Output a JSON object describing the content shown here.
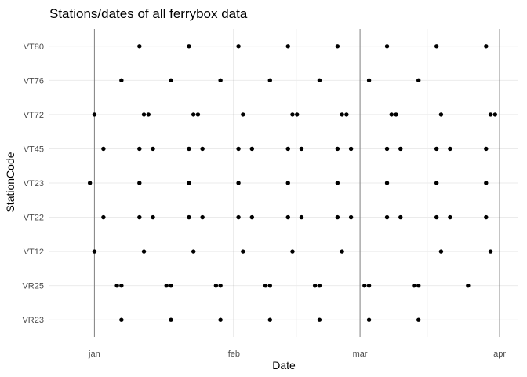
{
  "chart_data": {
    "type": "scatter",
    "title": "Stations/dates of all ferrybox data",
    "xlabel": "Date",
    "ylabel": "StationCode",
    "x_ticks": [
      {
        "date": "2017-01-01",
        "label": "jan"
      },
      {
        "date": "2017-02-01",
        "label": "feb"
      },
      {
        "date": "2017-03-01",
        "label": "mar"
      },
      {
        "date": "2017-04-01",
        "label": "apr"
      }
    ],
    "x_minor_grid": [
      "2017-01-16",
      "2017-02-15",
      "2017-03-16"
    ],
    "xlim": [
      "2016-12-22",
      "2017-04-05"
    ],
    "vertical_lines": [
      "2017-01-01",
      "2017-02-01",
      "2017-03-01",
      "2017-04-01"
    ],
    "categories": [
      "VR23",
      "VR25",
      "VT12",
      "VT22",
      "VT23",
      "VT45",
      "VT72",
      "VT76",
      "VT80"
    ],
    "grid": true,
    "point_color": "#000000",
    "series": [
      {
        "station": "VT80",
        "dates": [
          "2017-01-11",
          "2017-01-22",
          "2017-02-02",
          "2017-02-13",
          "2017-02-24",
          "2017-03-07",
          "2017-03-18",
          "2017-03-29"
        ]
      },
      {
        "station": "VT76",
        "dates": [
          "2017-01-07",
          "2017-01-18",
          "2017-01-29",
          "2017-02-09",
          "2017-02-20",
          "2017-03-03",
          "2017-03-14"
        ]
      },
      {
        "station": "VT72",
        "dates": [
          "2017-01-01",
          "2017-01-12",
          "2017-01-13",
          "2017-01-23",
          "2017-01-24",
          "2017-02-03",
          "2017-02-14",
          "2017-02-15",
          "2017-02-25",
          "2017-02-26",
          "2017-03-08",
          "2017-03-09",
          "2017-03-19",
          "2017-03-30",
          "2017-03-31"
        ]
      },
      {
        "station": "VT45",
        "dates": [
          "2017-01-03",
          "2017-01-11",
          "2017-01-14",
          "2017-01-22",
          "2017-01-25",
          "2017-02-02",
          "2017-02-05",
          "2017-02-13",
          "2017-02-16",
          "2017-02-24",
          "2017-02-27",
          "2017-03-07",
          "2017-03-10",
          "2017-03-18",
          "2017-03-21",
          "2017-03-29"
        ]
      },
      {
        "station": "VT23",
        "dates": [
          "2016-12-31",
          "2017-01-11",
          "2017-01-22",
          "2017-02-02",
          "2017-02-13",
          "2017-02-24",
          "2017-03-07",
          "2017-03-18",
          "2017-03-29"
        ]
      },
      {
        "station": "VT22",
        "dates": [
          "2017-01-03",
          "2017-01-11",
          "2017-01-14",
          "2017-01-22",
          "2017-01-25",
          "2017-02-02",
          "2017-02-05",
          "2017-02-13",
          "2017-02-16",
          "2017-02-24",
          "2017-02-27",
          "2017-03-07",
          "2017-03-10",
          "2017-03-18",
          "2017-03-21",
          "2017-03-29"
        ]
      },
      {
        "station": "VT12",
        "dates": [
          "2017-01-01",
          "2017-01-12",
          "2017-01-23",
          "2017-02-03",
          "2017-02-14",
          "2017-02-25",
          "2017-03-19",
          "2017-03-30"
        ]
      },
      {
        "station": "VR25",
        "dates": [
          "2017-01-06",
          "2017-01-07",
          "2017-01-17",
          "2017-01-18",
          "2017-01-28",
          "2017-01-29",
          "2017-02-08",
          "2017-02-09",
          "2017-02-19",
          "2017-02-20",
          "2017-03-02",
          "2017-03-03",
          "2017-03-13",
          "2017-03-14",
          "2017-03-25"
        ]
      },
      {
        "station": "VR23",
        "dates": [
          "2017-01-07",
          "2017-01-18",
          "2017-01-29",
          "2017-02-09",
          "2017-02-20",
          "2017-03-03",
          "2017-03-14"
        ]
      }
    ]
  }
}
